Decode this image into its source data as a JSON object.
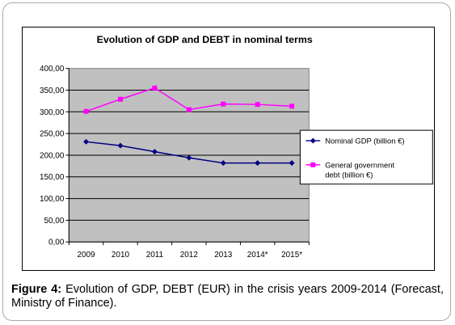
{
  "caption": {
    "label": "Figure 4:",
    "text": "Evolution of GDP, DEBT (EUR) in the crisis years 2009-2014 (Forecast, Ministry of Finance)."
  },
  "chart_data": {
    "type": "line",
    "title": "Evolution of GDP and DEBT in nominal terms",
    "categories": [
      "2009",
      "2010",
      "2011",
      "2012",
      "2013",
      "2014*",
      "2015*"
    ],
    "y_ticks": [
      "0,00",
      "50,00",
      "100,00",
      "150,00",
      "200,00",
      "250,00",
      "300,00",
      "350,00",
      "400,00"
    ],
    "ylim": [
      0,
      400
    ],
    "grid": true,
    "plot_background": "#c0c0c0",
    "legend_position": "right",
    "series": [
      {
        "name": "Nominal GDP (billion €)",
        "color": "#000080",
        "marker": "diamond",
        "values": [
          231,
          222,
          208,
          194,
          182,
          182,
          182
        ]
      },
      {
        "name": "General government debt (billion €)",
        "name_lines": [
          "General government",
          "debt (billion €)"
        ],
        "color": "#ff00ff",
        "marker": "square",
        "values": [
          301,
          329,
          355,
          305,
          318,
          317,
          313
        ]
      }
    ]
  }
}
